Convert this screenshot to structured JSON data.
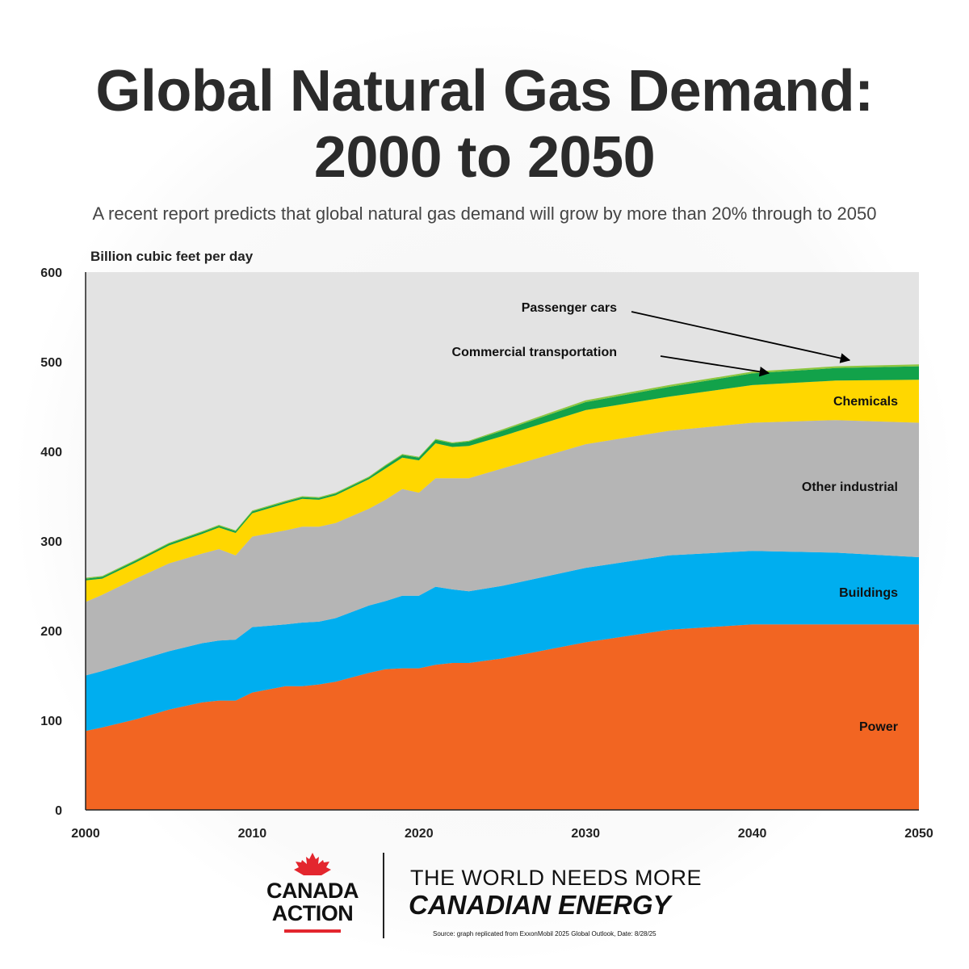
{
  "title_line1": "Global Natural Gas Demand:",
  "title_line2": "2000 to 2050",
  "subtitle": "A recent report predicts that global natural gas demand will grow by more than 20% through to 2050",
  "chart_data": {
    "type": "area",
    "stacked": true,
    "ylabel": "Billion cubic feet per day",
    "xlabel": "",
    "xlim": [
      2000,
      2050
    ],
    "ylim": [
      0,
      600
    ],
    "x_ticks": [
      "2000",
      "2010",
      "2020",
      "2030",
      "2040",
      "2050"
    ],
    "y_ticks": [
      "0",
      "100",
      "200",
      "300",
      "400",
      "500",
      "600"
    ],
    "grid": false,
    "x": [
      2000,
      2001,
      2003,
      2005,
      2007,
      2008,
      2009,
      2010,
      2012,
      2013,
      2014,
      2015,
      2017,
      2018,
      2019,
      2020,
      2021,
      2022,
      2023,
      2025,
      2030,
      2035,
      2040,
      2045,
      2050
    ],
    "series": [
      {
        "name": "Power",
        "color": "#F26522",
        "values": [
          88,
          92,
          101,
          112,
          120,
          122,
          122,
          131,
          138,
          138,
          140,
          143,
          153,
          157,
          158,
          158,
          162,
          164,
          164,
          169,
          187,
          201,
          207,
          207,
          207
        ]
      },
      {
        "name": "Buildings",
        "color": "#00AEEF",
        "values": [
          62,
          63,
          65,
          65,
          66,
          67,
          68,
          73,
          69,
          71,
          70,
          71,
          75,
          76,
          81,
          81,
          87,
          82,
          80,
          81,
          83,
          83,
          82,
          80,
          75
        ]
      },
      {
        "name": "Other industrial",
        "color": "#B5B5B5",
        "values": [
          82,
          85,
          92,
          98,
          100,
          102,
          94,
          101,
          105,
          107,
          106,
          106,
          108,
          113,
          119,
          115,
          121,
          124,
          126,
          131,
          138,
          139,
          143,
          148,
          150
        ]
      },
      {
        "name": "Chemicals",
        "color": "#FFD700",
        "values": [
          24,
          18,
          18,
          20,
          22,
          24,
          25,
          26,
          30,
          31,
          30,
          31,
          33,
          35,
          35,
          36,
          39,
          35,
          36,
          36,
          38,
          38,
          42,
          44,
          48
        ]
      },
      {
        "name": "Commercial transportation",
        "color": "#12A24A",
        "values": [
          2,
          2,
          2,
          2,
          2,
          2,
          2,
          2,
          2,
          2,
          2,
          2,
          2,
          3,
          3,
          3,
          4,
          4,
          5,
          6,
          9,
          11,
          13,
          14,
          15
        ]
      },
      {
        "name": "Passenger cars",
        "color": "#8DC63F",
        "values": [
          1,
          1,
          1,
          1,
          1,
          1,
          1,
          1,
          1,
          1,
          1,
          1,
          1,
          1,
          1,
          1,
          1,
          1,
          1,
          1.5,
          2,
          2,
          2,
          2,
          2
        ]
      }
    ],
    "annotations": [
      "Passenger cars",
      "Commercial transportation"
    ],
    "plot_background": "#E3E3E3"
  },
  "footer": {
    "logo_line1": "CANADA",
    "logo_line2": "ACTION",
    "tagline1": "THE WORLD NEEDS MORE",
    "tagline2": "CANADIAN ENERGY",
    "source": "Source: graph replicated from ExxonMobil 2025 Global Outlook, Date: 8/28/25",
    "brand_color": "#E3262E"
  }
}
